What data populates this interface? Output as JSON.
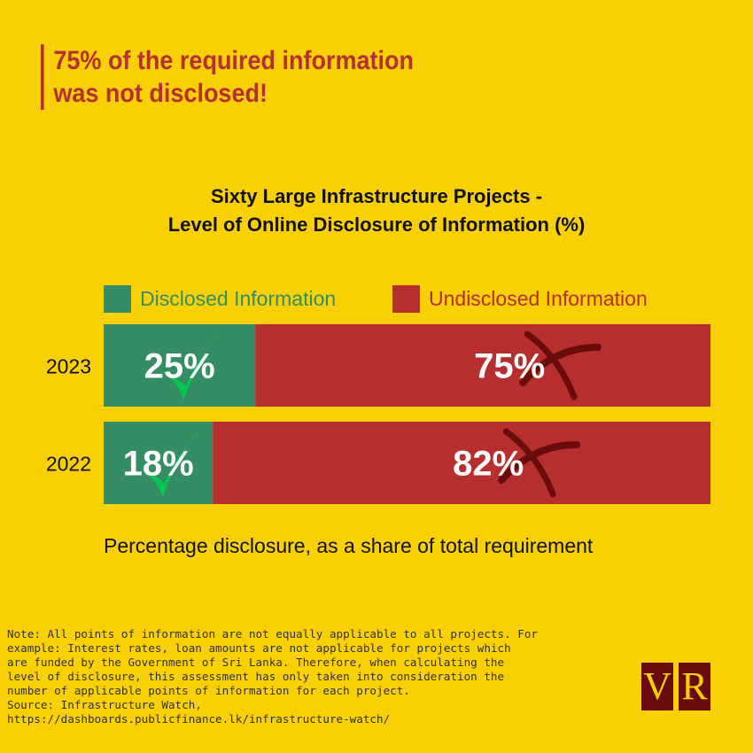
{
  "headline": [
    "75% of the required information",
    "was not disclosed!"
  ],
  "chart_data": {
    "type": "bar",
    "orientation": "horizontal",
    "stacked": true,
    "title": [
      "Sixty Large Infrastructure Projects -",
      "Level of Online Disclosure of Information (%)"
    ],
    "xlabel": "Percentage disclosure, as a share of total requirement",
    "categories": [
      "2023",
      "2022"
    ],
    "series": [
      {
        "name": "Disclosed Information",
        "values": [
          25,
          18
        ],
        "labels": [
          "25%",
          "18%"
        ],
        "color": "#358E63",
        "icon": "check-icon"
      },
      {
        "name": "Undisclosed Information",
        "values": [
          75,
          82
        ],
        "labels": [
          "75%",
          "82%"
        ],
        "color": "#B72E2E",
        "icon": "cross-icon"
      }
    ],
    "xlim": [
      0,
      100
    ],
    "legend": "top"
  },
  "note": [
    "Note: All points of information are not equally applicable to all projects. For",
    "example: Interest rates, loan amounts are not applicable for projects which",
    "are funded by the Government of Sri Lanka. Therefore, when calculating the",
    "level of disclosure, this assessment has only taken into consideration the",
    "number of applicable points of information for each project.",
    "Source: Infrastructure Watch,",
    "https://dashboards.publicfinance.lk/infrastructure-watch/"
  ],
  "logo": [
    "V",
    "R"
  ],
  "colors": {
    "background": "#F9D004",
    "headline": "#B8302E",
    "logo": "#6B0C0C"
  }
}
